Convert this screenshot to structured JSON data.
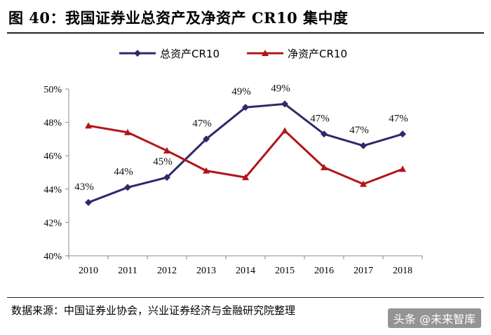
{
  "figure": {
    "title": "图 40：我国证券业总资产及净资产 CR10 集中度",
    "source": "数据来源：中国证券业协会，兴业证券经济与金融研究院整理",
    "watermark": "头条 @未来智库"
  },
  "chart_data": {
    "type": "line",
    "title": "",
    "xlabel": "",
    "ylabel": "",
    "categories": [
      "2010",
      "2011",
      "2012",
      "2013",
      "2014",
      "2015",
      "2016",
      "2017",
      "2018"
    ],
    "ylim": [
      40,
      50
    ],
    "yticks": [
      40,
      42,
      44,
      46,
      48,
      50
    ],
    "ytick_labels": [
      "40%",
      "42%",
      "44%",
      "46%",
      "48%",
      "50%"
    ],
    "grid": false,
    "legend_position": "top",
    "series": [
      {
        "name": "总资产CR10",
        "color": "#2e2a6b",
        "marker": "diamond",
        "values": [
          43.2,
          44.1,
          44.7,
          47.0,
          48.9,
          49.1,
          47.3,
          46.6,
          47.3
        ],
        "data_labels": [
          "43%",
          "44%",
          "45%",
          "47%",
          "49%",
          "49%",
          "47%",
          "47%",
          "47%"
        ]
      },
      {
        "name": "净资产CR10",
        "color": "#b3141b",
        "marker": "triangle",
        "values": [
          47.8,
          47.4,
          46.3,
          45.1,
          44.7,
          47.5,
          45.3,
          44.3,
          45.2
        ]
      }
    ]
  }
}
